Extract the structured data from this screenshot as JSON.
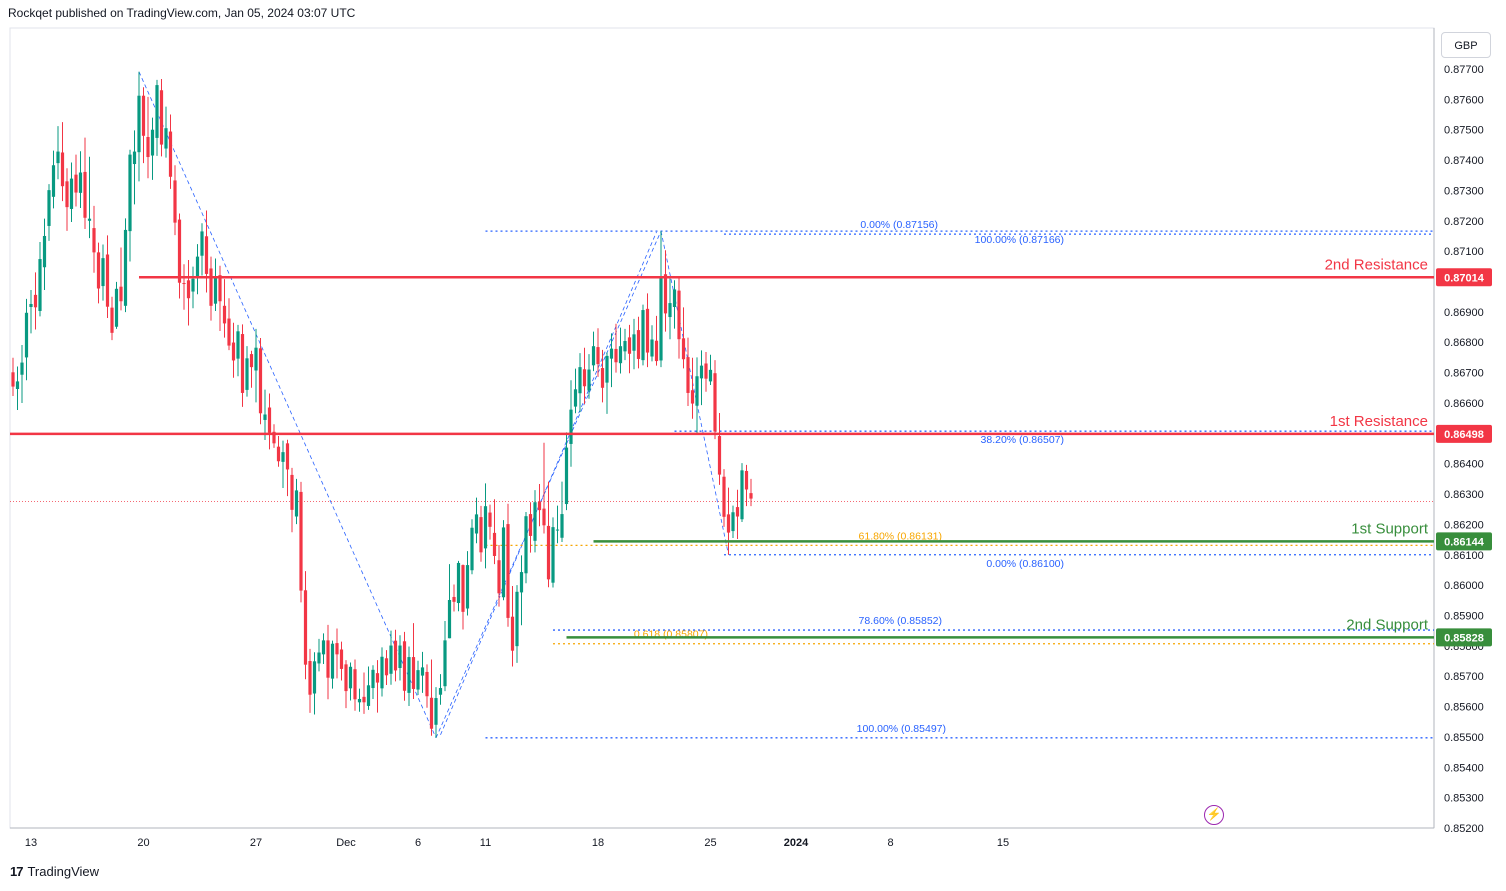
{
  "header": {
    "published": "Rockqet published on TradingView.com, Jan 05, 2024 03:07 UTC"
  },
  "footer": {
    "logo": "17",
    "brand": "TradingView"
  },
  "currency": "GBP",
  "colors": {
    "up": "#089981",
    "down": "#f23645",
    "resistance": "#f23645",
    "support": "#388e3c",
    "fib_blue": "#2962ff",
    "fib_orange": "#f7a600",
    "grid": "#f0f3fa"
  },
  "chart_data": {
    "type": "candlestick",
    "instrument": "GBP",
    "ylim": [
      0.852,
      0.877
    ],
    "y_ticks": [
      "0.87700",
      "0.87600",
      "0.87500",
      "0.87400",
      "0.87300",
      "0.87200",
      "0.87100",
      "0.87000",
      "0.86900",
      "0.86800",
      "0.86700",
      "0.86600",
      "0.86500",
      "0.86400",
      "0.86300",
      "0.86200",
      "0.86100",
      "0.86000",
      "0.85900",
      "0.85800",
      "0.85700",
      "0.85600",
      "0.85500",
      "0.85400",
      "0.85300",
      "0.85200"
    ],
    "x_ticks": [
      {
        "label": "13",
        "index": 4
      },
      {
        "label": "20",
        "index": 29
      },
      {
        "label": "27",
        "index": 54
      },
      {
        "label": "Dec",
        "index": 74
      },
      {
        "label": "6",
        "index": 90
      },
      {
        "label": "11",
        "index": 105
      },
      {
        "label": "18",
        "index": 130
      },
      {
        "label": "25",
        "index": 155
      },
      {
        "label": "2024",
        "index": 174
      },
      {
        "label": "8",
        "index": 195
      },
      {
        "label": "15",
        "index": 220
      }
    ],
    "bars": [
      [
        0.86701,
        0.86749,
        0.86623,
        0.86654
      ],
      [
        0.86646,
        0.8672,
        0.86577,
        0.86671
      ],
      [
        0.86693,
        0.86791,
        0.866,
        0.86733
      ],
      [
        0.8675,
        0.86943,
        0.86675,
        0.86897
      ],
      [
        0.86916,
        0.86972,
        0.86829,
        0.86926
      ],
      [
        0.86956,
        0.8703,
        0.86842,
        0.86915
      ],
      [
        0.86903,
        0.8713,
        0.86885,
        0.87074
      ],
      [
        0.87047,
        0.87207,
        0.86972,
        0.8715
      ],
      [
        0.87183,
        0.87321,
        0.87134,
        0.87301
      ],
      [
        0.87279,
        0.87431,
        0.87241,
        0.87383
      ],
      [
        0.8739,
        0.87512,
        0.87337,
        0.87428
      ],
      [
        0.87425,
        0.87525,
        0.87265,
        0.87314
      ],
      [
        0.8733,
        0.87373,
        0.87167,
        0.87245
      ],
      [
        0.87239,
        0.87392,
        0.87196,
        0.87339
      ],
      [
        0.87352,
        0.87418,
        0.87247,
        0.87293
      ],
      [
        0.87292,
        0.87429,
        0.87242,
        0.87359
      ],
      [
        0.87361,
        0.87474,
        0.87173,
        0.8721
      ],
      [
        0.872,
        0.87411,
        0.87143,
        0.87207
      ],
      [
        0.87176,
        0.87249,
        0.87029,
        0.87096
      ],
      [
        0.87096,
        0.87128,
        0.86928,
        0.86977
      ],
      [
        0.86985,
        0.87122,
        0.86937,
        0.87077
      ],
      [
        0.87089,
        0.87152,
        0.8688,
        0.86917
      ],
      [
        0.86914,
        0.8695,
        0.86807,
        0.86831
      ],
      [
        0.86851,
        0.86999,
        0.86844,
        0.86976
      ],
      [
        0.86983,
        0.87112,
        0.86905,
        0.86935
      ],
      [
        0.8692,
        0.87208,
        0.86899,
        0.8717
      ],
      [
        0.87166,
        0.87434,
        0.87066,
        0.87418
      ],
      [
        0.87387,
        0.87498,
        0.87254,
        0.87428
      ],
      [
        0.87426,
        0.87691,
        0.8733,
        0.87612
      ],
      [
        0.87612,
        0.8764,
        0.8739,
        0.8748
      ],
      [
        0.87476,
        0.87608,
        0.8734,
        0.8741
      ],
      [
        0.87415,
        0.8754,
        0.87335,
        0.875
      ],
      [
        0.87473,
        0.87664,
        0.87414,
        0.87647
      ],
      [
        0.8763,
        0.87667,
        0.87412,
        0.87451
      ],
      [
        0.87438,
        0.87576,
        0.87408,
        0.87505
      ],
      [
        0.87494,
        0.8755,
        0.87305,
        0.87345
      ],
      [
        0.87333,
        0.87383,
        0.87153,
        0.87194
      ],
      [
        0.87204,
        0.87224,
        0.86944,
        0.86996
      ],
      [
        0.86995,
        0.87057,
        0.86907,
        0.86992
      ],
      [
        0.87004,
        0.87071,
        0.86855,
        0.86945
      ],
      [
        0.86967,
        0.87049,
        0.86912,
        0.87009
      ],
      [
        0.87017,
        0.87123,
        0.86958,
        0.87082
      ],
      [
        0.87085,
        0.87192,
        0.8702,
        0.87165
      ],
      [
        0.87149,
        0.87234,
        0.86964,
        0.87025
      ],
      [
        0.87043,
        0.87082,
        0.86871,
        0.8692
      ],
      [
        0.86927,
        0.87076,
        0.86903,
        0.87018
      ],
      [
        0.87021,
        0.87052,
        0.86837,
        0.86935
      ],
      [
        0.8692,
        0.87008,
        0.86815,
        0.86862
      ],
      [
        0.86878,
        0.86945,
        0.86774,
        0.86789
      ],
      [
        0.86799,
        0.86864,
        0.86683,
        0.8674
      ],
      [
        0.86746,
        0.86857,
        0.86688,
        0.86836
      ],
      [
        0.86827,
        0.86859,
        0.86587,
        0.86633
      ],
      [
        0.86643,
        0.86787,
        0.86621,
        0.86747
      ],
      [
        0.86761,
        0.86772,
        0.8665,
        0.86718
      ],
      [
        0.86707,
        0.86844,
        0.86602,
        0.86782
      ],
      [
        0.8678,
        0.86814,
        0.8653,
        0.86566
      ],
      [
        0.86544,
        0.86644,
        0.86478,
        0.86562
      ],
      [
        0.86585,
        0.86631,
        0.86447,
        0.86502
      ],
      [
        0.86505,
        0.8653,
        0.86452,
        0.86467
      ],
      [
        0.86456,
        0.86491,
        0.8639,
        0.86408
      ],
      [
        0.86406,
        0.86476,
        0.8632,
        0.86438
      ],
      [
        0.86467,
        0.86479,
        0.86293,
        0.86381
      ],
      [
        0.86363,
        0.86386,
        0.86174,
        0.86248
      ],
      [
        0.86226,
        0.8635,
        0.86201,
        0.86312
      ],
      [
        0.86307,
        0.8634,
        0.85943,
        0.85982
      ],
      [
        0.85983,
        0.86046,
        0.8569,
        0.85738
      ],
      [
        0.8575,
        0.8579,
        0.85579,
        0.85639
      ],
      [
        0.85643,
        0.85779,
        0.85574,
        0.85749
      ],
      [
        0.85742,
        0.85823,
        0.85716,
        0.85778
      ],
      [
        0.85772,
        0.85841,
        0.8574,
        0.85818
      ],
      [
        0.85818,
        0.85869,
        0.85624,
        0.85695
      ],
      [
        0.85692,
        0.85817,
        0.85659,
        0.85807
      ],
      [
        0.85809,
        0.85857,
        0.85693,
        0.85772
      ],
      [
        0.85788,
        0.85814,
        0.85686,
        0.85724
      ],
      [
        0.85739,
        0.85753,
        0.85595,
        0.85651
      ],
      [
        0.8566,
        0.85745,
        0.8562,
        0.85731
      ],
      [
        0.85723,
        0.85755,
        0.85586,
        0.85624
      ],
      [
        0.85614,
        0.85659,
        0.85583,
        0.85625
      ],
      [
        0.85632,
        0.85712,
        0.85576,
        0.85614
      ],
      [
        0.85602,
        0.85732,
        0.85589,
        0.8567
      ],
      [
        0.85661,
        0.85736,
        0.85625,
        0.85721
      ],
      [
        0.8571,
        0.85753,
        0.8558,
        0.85679
      ],
      [
        0.8566,
        0.85795,
        0.85633,
        0.85764
      ],
      [
        0.85759,
        0.85786,
        0.85671,
        0.85703
      ],
      [
        0.85708,
        0.8585,
        0.85672,
        0.85801
      ],
      [
        0.85817,
        0.85853,
        0.85683,
        0.85719
      ],
      [
        0.85727,
        0.85835,
        0.85686,
        0.85801
      ],
      [
        0.85815,
        0.85846,
        0.85619,
        0.85652
      ],
      [
        0.85645,
        0.85798,
        0.85602,
        0.85763
      ],
      [
        0.85763,
        0.85875,
        0.85625,
        0.85658
      ],
      [
        0.85656,
        0.85751,
        0.85638,
        0.8572
      ],
      [
        0.85702,
        0.8578,
        0.85645,
        0.85729
      ],
      [
        0.85714,
        0.85739,
        0.85596,
        0.85634
      ],
      [
        0.85629,
        0.85755,
        0.85504,
        0.85527
      ],
      [
        0.8554,
        0.85664,
        0.85497,
        0.85628
      ],
      [
        0.85639,
        0.85707,
        0.85606,
        0.85661
      ],
      [
        0.85667,
        0.85882,
        0.85651,
        0.85818
      ],
      [
        0.85825,
        0.86069,
        0.85825,
        0.85951
      ],
      [
        0.85961,
        0.86002,
        0.85913,
        0.85945
      ],
      [
        0.85941,
        0.8608,
        0.85914,
        0.86073
      ],
      [
        0.86066,
        0.86068,
        0.85854,
        0.85912
      ],
      [
        0.85923,
        0.86112,
        0.859,
        0.86066
      ],
      [
        0.86049,
        0.86217,
        0.86036,
        0.86189
      ],
      [
        0.8617,
        0.86288,
        0.86138,
        0.86233
      ],
      [
        0.86224,
        0.86261,
        0.86077,
        0.86108
      ],
      [
        0.86121,
        0.86335,
        0.86055,
        0.8626
      ],
      [
        0.86239,
        0.86265,
        0.8615,
        0.86192
      ],
      [
        0.86172,
        0.86283,
        0.86069,
        0.86096
      ],
      [
        0.86082,
        0.86132,
        0.85929,
        0.85973
      ],
      [
        0.8596,
        0.86214,
        0.8595,
        0.8619
      ],
      [
        0.86201,
        0.86268,
        0.85863,
        0.85892
      ],
      [
        0.85896,
        0.85997,
        0.85732,
        0.85784
      ],
      [
        0.85799,
        0.86,
        0.85744,
        0.85978
      ],
      [
        0.85976,
        0.86098,
        0.85868,
        0.86043
      ],
      [
        0.86039,
        0.86241,
        0.86006,
        0.86227
      ],
      [
        0.86234,
        0.86273,
        0.86107,
        0.86162
      ],
      [
        0.86146,
        0.86313,
        0.86108,
        0.86273
      ],
      [
        0.86275,
        0.86333,
        0.86194,
        0.86247
      ],
      [
        0.86252,
        0.86469,
        0.8617,
        0.86197
      ],
      [
        0.86195,
        0.86341,
        0.85993,
        0.86019
      ],
      [
        0.86008,
        0.86223,
        0.85992,
        0.86191
      ],
      [
        0.86182,
        0.86262,
        0.86138,
        0.86183
      ],
      [
        0.86156,
        0.86341,
        0.86142,
        0.86234
      ],
      [
        0.86267,
        0.86503,
        0.86247,
        0.86453
      ],
      [
        0.86465,
        0.86675,
        0.8639,
        0.86578
      ],
      [
        0.86588,
        0.86713,
        0.86566,
        0.86645
      ],
      [
        0.86632,
        0.86764,
        0.8657,
        0.86718
      ],
      [
        0.86711,
        0.86782,
        0.86596,
        0.86655
      ],
      [
        0.86641,
        0.86761,
        0.86614,
        0.8671
      ],
      [
        0.86724,
        0.86835,
        0.86705,
        0.86787
      ],
      [
        0.86784,
        0.86846,
        0.86686,
        0.86728
      ],
      [
        0.86715,
        0.86775,
        0.86602,
        0.8665
      ],
      [
        0.86667,
        0.86767,
        0.86564,
        0.86755
      ],
      [
        0.86746,
        0.86829,
        0.86652,
        0.86779
      ],
      [
        0.86778,
        0.86861,
        0.867,
        0.86734
      ],
      [
        0.86731,
        0.86848,
        0.86697,
        0.86787
      ],
      [
        0.8677,
        0.86844,
        0.86741,
        0.86804
      ],
      [
        0.86816,
        0.86857,
        0.86698,
        0.86762
      ],
      [
        0.86772,
        0.86877,
        0.86711,
        0.86826
      ],
      [
        0.8684,
        0.86884,
        0.86714,
        0.86745
      ],
      [
        0.86741,
        0.86924,
        0.86724,
        0.86906
      ],
      [
        0.8691,
        0.86961,
        0.86718,
        0.86766
      ],
      [
        0.86753,
        0.86856,
        0.86737,
        0.86809
      ],
      [
        0.86805,
        0.86887,
        0.86723,
        0.86738
      ],
      [
        0.8674,
        0.87166,
        0.86718,
        0.87018
      ],
      [
        0.87024,
        0.87103,
        0.86835,
        0.86895
      ],
      [
        0.86883,
        0.87014,
        0.8681,
        0.86929
      ],
      [
        0.86916,
        0.87004,
        0.86845,
        0.86974
      ],
      [
        0.8697,
        0.87015,
        0.86746,
        0.8681
      ],
      [
        0.86813,
        0.86915,
        0.86714,
        0.86744
      ],
      [
        0.86751,
        0.86815,
        0.8659,
        0.86633
      ],
      [
        0.86642,
        0.86749,
        0.86548,
        0.86598
      ],
      [
        0.86591,
        0.8675,
        0.86495,
        0.86688
      ],
      [
        0.86681,
        0.86773,
        0.86593,
        0.86723
      ],
      [
        0.8673,
        0.86768,
        0.86637,
        0.8668
      ],
      [
        0.86671,
        0.86759,
        0.86659,
        0.86709
      ],
      [
        0.86698,
        0.86741,
        0.86481,
        0.86506
      ],
      [
        0.86491,
        0.86567,
        0.8633,
        0.86364
      ],
      [
        0.86357,
        0.86382,
        0.86192,
        0.86225
      ],
      [
        0.86233,
        0.86321,
        0.861,
        0.86173
      ],
      [
        0.86178,
        0.86262,
        0.86155,
        0.8624
      ],
      [
        0.86257,
        0.86314,
        0.86152,
        0.86226
      ],
      [
        0.86217,
        0.86402,
        0.86208,
        0.86378
      ],
      [
        0.86376,
        0.86396,
        0.8626,
        0.86315
      ],
      [
        0.86303,
        0.8635,
        0.8626,
        0.86285
      ]
    ],
    "horizontal_levels": [
      {
        "name": "2nd Resistance",
        "value": 0.87014,
        "label": "0.87014",
        "color": "#f23645"
      },
      {
        "name": "1st Resistance",
        "value": 0.86498,
        "label": "0.86498",
        "color": "#f23645"
      },
      {
        "name": "1st Support",
        "value": 0.86144,
        "label": "0.86144",
        "color": "#388e3c"
      },
      {
        "name": "2nd Support",
        "value": 0.85828,
        "label": "0.85828",
        "color": "#388e3c"
      }
    ],
    "current_price": 0.86275,
    "fib_texts": [
      {
        "text": "0.00% (0.87156)",
        "color": "#2962ff"
      },
      {
        "text": "100.00% (0.87166)",
        "color": "#2962ff"
      },
      {
        "text": "38.20% (0.86507)",
        "color": "#2962ff"
      },
      {
        "text": "61.80% (0.86131)",
        "color": "#f7a600"
      },
      {
        "text": "0.00% (0.86100)",
        "color": "#2962ff"
      },
      {
        "text": "78.60% (0.85852)",
        "color": "#2962ff"
      },
      {
        "text": "0.618 (0.85807)",
        "color": "#f7a600"
      },
      {
        "text": "100.00% (0.85497)",
        "color": "#2962ff"
      }
    ]
  }
}
